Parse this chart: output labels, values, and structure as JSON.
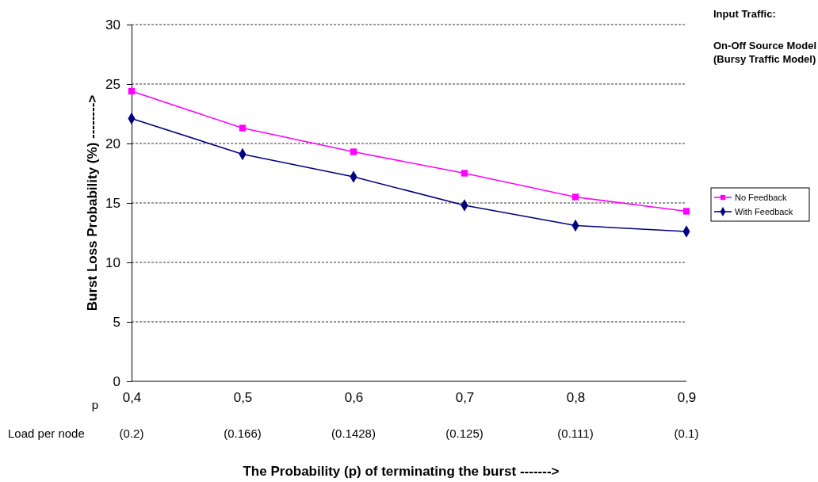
{
  "chart_data": {
    "type": "line",
    "xlabel": "The Probability (p) of terminating the burst ------->",
    "ylabel": "Burst Loss Probability (%) -------->",
    "categories": [
      "0,4",
      "0,5",
      "0,6",
      "0,7",
      "0,8",
      "0,9"
    ],
    "series": [
      {
        "name": "No Feedback",
        "color": "#ff00ff",
        "marker": "square",
        "values": [
          24.4,
          21.3,
          19.3,
          17.5,
          15.5,
          14.3
        ]
      },
      {
        "name": "With Feedback",
        "color": "#000080",
        "marker": "diamond",
        "values": [
          22.1,
          19.1,
          17.2,
          14.8,
          13.1,
          12.6
        ]
      }
    ],
    "ylim": [
      0,
      30
    ],
    "yticks": [
      0,
      5,
      10,
      15,
      20,
      25,
      30
    ],
    "grid": "y",
    "legend": "right",
    "annotations": [
      "p",
      "Load per node",
      "(0.2)",
      "(0.166)",
      "(0.1428)",
      "(0.125)",
      "(0.111)",
      "(0.1)",
      "Input Traffic:",
      "On-Off Source Model",
      "(Bursy Traffic Model)"
    ]
  }
}
